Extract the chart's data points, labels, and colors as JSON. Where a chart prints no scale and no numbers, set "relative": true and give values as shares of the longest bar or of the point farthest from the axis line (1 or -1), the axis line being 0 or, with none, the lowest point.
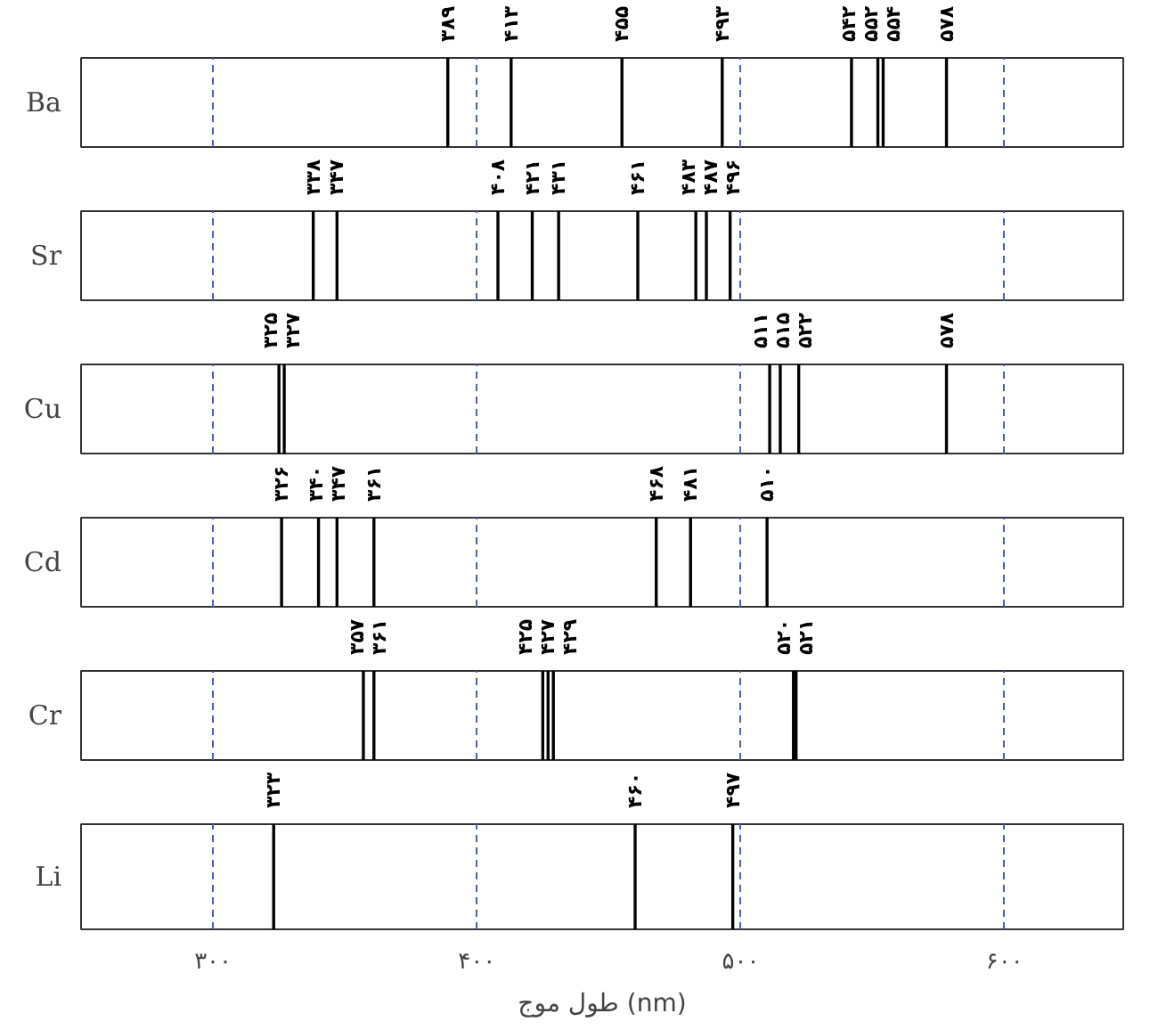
{
  "chart_data": [
    {
      "type": "bar",
      "ylabel": "Ba",
      "x": [
        389,
        413,
        455,
        493,
        542,
        552,
        554,
        578
      ],
      "values": [
        1,
        1,
        1,
        1,
        1,
        1,
        1,
        1
      ],
      "relative": true,
      "color": "#000000",
      "xlim": [
        250,
        645
      ],
      "xticks": [
        {
          "value": 300,
          "label": null
        },
        {
          "value": 400,
          "label": null
        },
        {
          "value": 500,
          "label": null
        },
        {
          "value": 600,
          "label": null
        }
      ],
      "tick_labels": false,
      "grid": "x",
      "annotations": [
        {
          "text": "۳۸۹",
          "x": 389,
          "y": 1
        },
        {
          "text": "۴۱۳",
          "x": 413,
          "y": 1
        },
        {
          "text": "۴۵۵",
          "x": 455,
          "y": 1
        },
        {
          "text": "۴۹۳",
          "x": 493,
          "y": 1
        },
        {
          "text": "۵۴۲",
          "x": 542,
          "y": 1
        },
        {
          "text": "۵۵۲",
          "x": 552,
          "y": 1
        },
        {
          "text": "۵۵۴",
          "x": 554,
          "y": 1
        },
        {
          "text": "۵۷۸",
          "x": 578,
          "y": 1
        }
      ]
    },
    {
      "type": "bar",
      "ylabel": "Sr",
      "x": [
        338,
        347,
        408,
        421,
        431,
        461,
        483,
        487,
        496
      ],
      "values": [
        1,
        1,
        1,
        1,
        1,
        1,
        1,
        1,
        1
      ],
      "relative": true,
      "color": "#000000",
      "xlim": [
        250,
        645
      ],
      "xticks": [
        {
          "value": 300,
          "label": null
        },
        {
          "value": 400,
          "label": null
        },
        {
          "value": 500,
          "label": null
        },
        {
          "value": 600,
          "label": null
        }
      ],
      "tick_labels": false,
      "grid": "x",
      "annotations": [
        {
          "text": "۳۳۸",
          "x": 338,
          "y": 1
        },
        {
          "text": "۳۴۷",
          "x": 347,
          "y": 1
        },
        {
          "text": "۴۰۸",
          "x": 408,
          "y": 1
        },
        {
          "text": "۴۲۱",
          "x": 421,
          "y": 1
        },
        {
          "text": "۴۳۱",
          "x": 431,
          "y": 1
        },
        {
          "text": "۴۶۱",
          "x": 461,
          "y": 1
        },
        {
          "text": "۴۸۳",
          "x": 483,
          "y": 1
        },
        {
          "text": "۴۸۷",
          "x": 487,
          "y": 1
        },
        {
          "text": "۴۹۶",
          "x": 496,
          "y": 1
        }
      ]
    },
    {
      "type": "bar",
      "ylabel": "Cu",
      "x": [
        325,
        327,
        511,
        515,
        522,
        578
      ],
      "values": [
        1,
        1,
        1,
        1,
        1,
        1
      ],
      "relative": true,
      "color": "#000000",
      "xlim": [
        250,
        645
      ],
      "xticks": [
        {
          "value": 300,
          "label": null
        },
        {
          "value": 400,
          "label": null
        },
        {
          "value": 500,
          "label": null
        },
        {
          "value": 600,
          "label": null
        }
      ],
      "tick_labels": false,
      "grid": "x",
      "annotations": [
        {
          "text": "۳۲۵",
          "x": 325,
          "y": 1
        },
        {
          "text": "۳۲۷",
          "x": 327,
          "y": 1
        },
        {
          "text": "۵۱۱",
          "x": 511,
          "y": 1
        },
        {
          "text": "۵۱۵",
          "x": 515,
          "y": 1
        },
        {
          "text": "۵۲۲",
          "x": 522,
          "y": 1
        },
        {
          "text": "۵۷۸",
          "x": 578,
          "y": 1
        }
      ]
    },
    {
      "type": "bar",
      "ylabel": "Cd",
      "x": [
        326,
        340,
        347,
        361,
        468,
        481,
        510
      ],
      "values": [
        1,
        1,
        1,
        1,
        1,
        1,
        1
      ],
      "relative": true,
      "color": "#000000",
      "xlim": [
        250,
        645
      ],
      "xticks": [
        {
          "value": 300,
          "label": null
        },
        {
          "value": 400,
          "label": null
        },
        {
          "value": 500,
          "label": null
        },
        {
          "value": 600,
          "label": null
        }
      ],
      "tick_labels": false,
      "grid": "x",
      "annotations": [
        {
          "text": "۳۲۶",
          "x": 326,
          "y": 1
        },
        {
          "text": "۳۴۰",
          "x": 340,
          "y": 1
        },
        {
          "text": "۳۴۷",
          "x": 347,
          "y": 1
        },
        {
          "text": "۳۶۱",
          "x": 361,
          "y": 1
        },
        {
          "text": "۴۶۸",
          "x": 468,
          "y": 1
        },
        {
          "text": "۴۸۱",
          "x": 481,
          "y": 1
        },
        {
          "text": "۵۱۰",
          "x": 510,
          "y": 1
        }
      ]
    },
    {
      "type": "bar",
      "ylabel": "Cr",
      "x": [
        357,
        361,
        425,
        427,
        429,
        520,
        521
      ],
      "values": [
        1,
        1,
        1,
        1,
        1,
        1,
        1
      ],
      "relative": true,
      "color": "#000000",
      "xlim": [
        250,
        645
      ],
      "xticks": [
        {
          "value": 300,
          "label": null
        },
        {
          "value": 400,
          "label": null
        },
        {
          "value": 500,
          "label": null
        },
        {
          "value": 600,
          "label": null
        }
      ],
      "tick_labels": false,
      "grid": "x",
      "annotations": [
        {
          "text": "۳۵۷",
          "x": 357,
          "y": 1
        },
        {
          "text": "۳۶۱",
          "x": 361,
          "y": 1
        },
        {
          "text": "۴۲۵",
          "x": 425,
          "y": 1
        },
        {
          "text": "۴۲۷",
          "x": 427,
          "y": 1
        },
        {
          "text": "۴۲۹",
          "x": 429,
          "y": 1
        },
        {
          "text": "۵۲۰",
          "x": 520,
          "y": 1
        },
        {
          "text": "۵۲۱",
          "x": 521,
          "y": 1
        }
      ]
    },
    {
      "type": "bar",
      "ylabel": "Li",
      "xlabel": "طول موج (nm)",
      "x": [
        323,
        460,
        497
      ],
      "values": [
        1,
        1,
        1
      ],
      "relative": true,
      "color": "#000000",
      "xlim": [
        250,
        645
      ],
      "xticks": [
        {
          "value": 300,
          "label": "۳۰۰"
        },
        {
          "value": 400,
          "label": "۴۰۰"
        },
        {
          "value": 500,
          "label": "۵۰۰"
        },
        {
          "value": 600,
          "label": "۶۰۰"
        }
      ],
      "tick_labels": "x",
      "grid": "x",
      "annotations": [
        {
          "text": "۳۲۳",
          "x": 323,
          "y": 1
        },
        {
          "text": "۴۶۰",
          "x": 460,
          "y": 1
        },
        {
          "text": "۴۹۷",
          "x": 497,
          "y": 1
        }
      ]
    }
  ]
}
